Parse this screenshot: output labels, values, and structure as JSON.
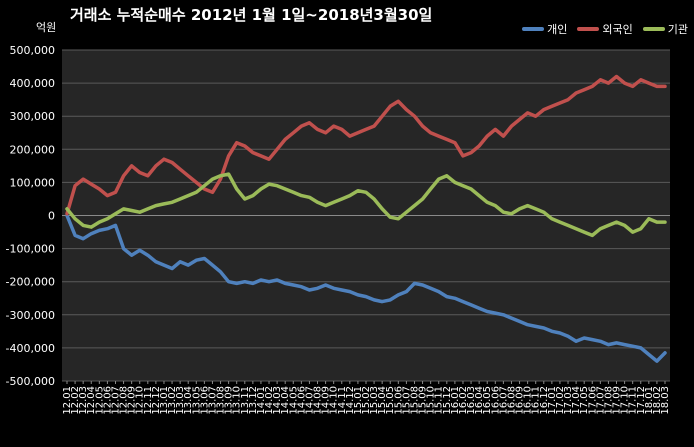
{
  "title": "거래소 누적순매수 2012년 1월 1일~2018년3월30일",
  "unit_label": "억원",
  "legend": [
    {
      "name": "개인",
      "color": "#4f81bd"
    },
    {
      "name": "외국인",
      "color": "#c0504d"
    },
    {
      "name": "기관",
      "color": "#9bbb59"
    }
  ],
  "chart_data": {
    "type": "line",
    "title": "거래소 누적순매수 2012년 1월 1일~2018년3월30일",
    "xlabel": "",
    "ylabel": "억원",
    "ylim": [
      -500000,
      500000
    ],
    "yticks": [
      500000,
      400000,
      300000,
      200000,
      100000,
      0,
      -100000,
      -200000,
      -300000,
      -400000,
      -500000
    ],
    "ytick_labels": [
      "500,000",
      "400,000",
      "300,000",
      "200,000",
      "100,000",
      "0",
      "-100,000",
      "-200,000",
      "-300,000",
      "-400,000",
      "-500,000"
    ],
    "grid": true,
    "legend_position": "top-right",
    "x_tick_labels": [
      "12.01",
      "12.02",
      "12.03",
      "12.04",
      "12.05",
      "12.06",
      "12.07",
      "12.08",
      "12.09",
      "12.10",
      "12.11",
      "12.12",
      "13.01",
      "13.02",
      "13.03",
      "13.04",
      "13.05",
      "13.06",
      "13.07",
      "13.08",
      "13.09",
      "13.10",
      "13.11",
      "13.12",
      "14.01",
      "14.02",
      "14.03",
      "14.04",
      "14.05",
      "14.06",
      "14.07",
      "14.08",
      "14.09",
      "14.10",
      "14.11",
      "14.12",
      "15.01",
      "15.02",
      "15.03",
      "15.04",
      "15.05",
      "15.06",
      "15.07",
      "15.08",
      "15.09",
      "15.10",
      "15.11",
      "15.12",
      "16.01",
      "16.02",
      "16.03",
      "16.04",
      "16.05",
      "16.06",
      "16.07",
      "16.08",
      "16.09",
      "16.10",
      "16.11",
      "16.12",
      "17.01",
      "17.02",
      "17.03",
      "17.04",
      "17.05",
      "17.06",
      "17.07",
      "17.08",
      "17.09",
      "17.10",
      "17.11",
      "17.12",
      "18.01",
      "18.02",
      "18.03"
    ],
    "x": [
      "12.01",
      "12.02",
      "12.03",
      "12.04",
      "12.05",
      "12.06",
      "12.07",
      "12.08",
      "12.09",
      "12.10",
      "12.11",
      "12.12",
      "13.01",
      "13.02",
      "13.03",
      "13.04",
      "13.05",
      "13.06",
      "13.07",
      "13.08",
      "13.09",
      "13.10",
      "13.11",
      "13.12",
      "14.01",
      "14.02",
      "14.03",
      "14.04",
      "14.05",
      "14.06",
      "14.07",
      "14.08",
      "14.09",
      "14.10",
      "14.11",
      "14.12",
      "15.01",
      "15.02",
      "15.03",
      "15.04",
      "15.05",
      "15.06",
      "15.07",
      "15.08",
      "15.09",
      "15.10",
      "15.11",
      "15.12",
      "16.01",
      "16.02",
      "16.03",
      "16.04",
      "16.05",
      "16.06",
      "16.07",
      "16.08",
      "16.09",
      "16.10",
      "16.11",
      "16.12",
      "17.01",
      "17.02",
      "17.03",
      "17.04",
      "17.05",
      "17.06",
      "17.07",
      "17.08",
      "17.09",
      "17.10",
      "17.11",
      "17.12",
      "18.01",
      "18.02",
      "18.03"
    ],
    "series": [
      {
        "name": "개인",
        "color": "#4f81bd",
        "values": [
          0,
          -60000,
          -70000,
          -55000,
          -45000,
          -40000,
          -30000,
          -100000,
          -120000,
          -105000,
          -120000,
          -140000,
          -150000,
          -160000,
          -140000,
          -150000,
          -135000,
          -130000,
          -150000,
          -170000,
          -200000,
          -205000,
          -200000,
          -205000,
          -195000,
          -200000,
          -195000,
          -205000,
          -210000,
          -215000,
          -225000,
          -220000,
          -210000,
          -220000,
          -225000,
          -230000,
          -240000,
          -245000,
          -255000,
          -260000,
          -255000,
          -240000,
          -230000,
          -205000,
          -210000,
          -220000,
          -230000,
          -245000,
          -250000,
          -260000,
          -270000,
          -280000,
          -290000,
          -295000,
          -300000,
          -310000,
          -320000,
          -330000,
          -335000,
          -340000,
          -350000,
          -355000,
          -365000,
          -380000,
          -370000,
          -375000,
          -380000,
          -390000,
          -385000,
          -390000,
          -395000,
          -400000,
          -420000,
          -440000,
          -415000
        ]
      },
      {
        "name": "외국인",
        "color": "#c0504d",
        "values": [
          5000,
          90000,
          110000,
          95000,
          80000,
          60000,
          70000,
          120000,
          150000,
          130000,
          120000,
          150000,
          170000,
          160000,
          140000,
          120000,
          100000,
          80000,
          70000,
          110000,
          180000,
          220000,
          210000,
          190000,
          180000,
          170000,
          200000,
          230000,
          250000,
          270000,
          280000,
          260000,
          250000,
          270000,
          260000,
          240000,
          250000,
          260000,
          270000,
          300000,
          330000,
          345000,
          320000,
          300000,
          270000,
          250000,
          240000,
          230000,
          220000,
          180000,
          190000,
          210000,
          240000,
          260000,
          240000,
          270000,
          290000,
          310000,
          300000,
          320000,
          330000,
          340000,
          350000,
          370000,
          380000,
          390000,
          410000,
          400000,
          420000,
          400000,
          390000,
          410000,
          400000,
          390000,
          390000
        ]
      },
      {
        "name": "기관",
        "color": "#9bbb59",
        "values": [
          20000,
          -10000,
          -30000,
          -35000,
          -20000,
          -10000,
          5000,
          20000,
          15000,
          10000,
          20000,
          30000,
          35000,
          40000,
          50000,
          60000,
          70000,
          90000,
          110000,
          120000,
          125000,
          80000,
          50000,
          60000,
          80000,
          95000,
          90000,
          80000,
          70000,
          60000,
          55000,
          40000,
          30000,
          40000,
          50000,
          60000,
          75000,
          70000,
          50000,
          20000,
          -5000,
          -10000,
          10000,
          30000,
          50000,
          80000,
          110000,
          120000,
          100000,
          90000,
          80000,
          60000,
          40000,
          30000,
          10000,
          5000,
          20000,
          30000,
          20000,
          10000,
          -10000,
          -20000,
          -30000,
          -40000,
          -50000,
          -60000,
          -40000,
          -30000,
          -20000,
          -30000,
          -50000,
          -40000,
          -10000,
          -20000,
          -20000
        ]
      }
    ]
  }
}
